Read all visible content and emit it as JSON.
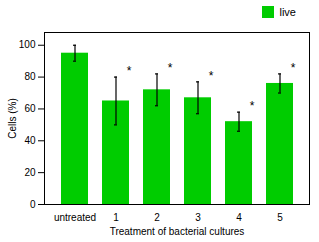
{
  "chart_data": {
    "type": "bar",
    "xlabel": "Treatment of bacterial cultures",
    "ylabel": "Cells (%)",
    "categories": [
      "untreated",
      "1",
      "2",
      "3",
      "4",
      "5"
    ],
    "series": [
      {
        "name": "live",
        "color": "#00cc00",
        "values": [
          95,
          65,
          72,
          67,
          52,
          76
        ],
        "errors": [
          5,
          15,
          10,
          10,
          6,
          6
        ]
      }
    ],
    "ylim": [
      0,
      108
    ],
    "yticks": [
      0,
      20,
      40,
      60,
      80,
      100
    ],
    "legend": "upper right",
    "annotations": [
      {
        "text": "*",
        "category": "1"
      },
      {
        "text": "*",
        "category": "2"
      },
      {
        "text": "*",
        "category": "3"
      },
      {
        "text": "*",
        "category": "4"
      },
      {
        "text": "*",
        "category": "5"
      }
    ]
  }
}
